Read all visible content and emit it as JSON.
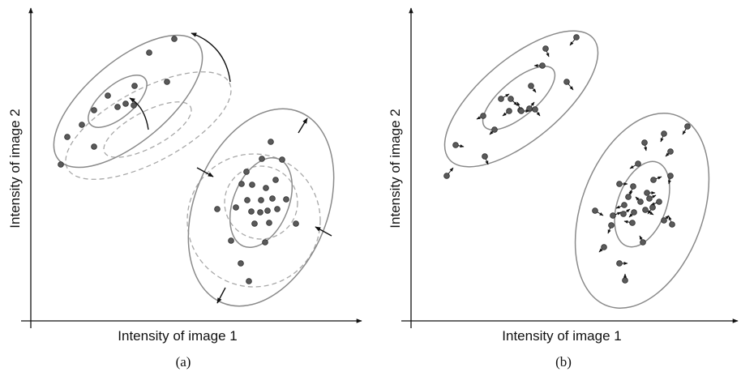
{
  "panels": [
    {
      "id": "a",
      "xlabel": "Intensity of image 1",
      "ylabel": "Intensity of image 2",
      "caption": "(a)"
    },
    {
      "id": "b",
      "xlabel": "Intensity of image 1",
      "ylabel": "Intensity of image 2",
      "caption": "(b)"
    }
  ],
  "colors": {
    "axis": "#111111",
    "ellipse": "#8a8a8a",
    "dashed_ellipse": "#a8a8a8",
    "point_fill": "#5a5a5a",
    "point_stroke": "#2a2a2a",
    "arrow": "#111111"
  }
}
